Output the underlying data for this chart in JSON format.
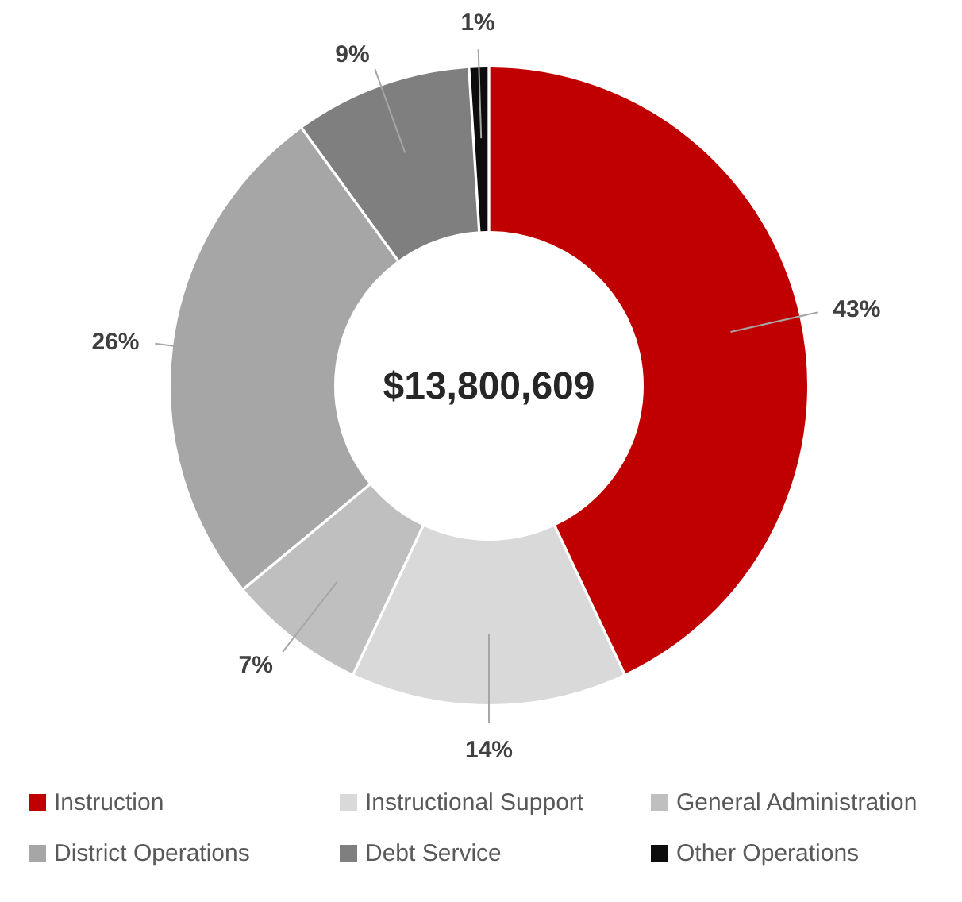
{
  "chart_data": {
    "type": "donut",
    "categories": [
      "Instruction",
      "Instructional Support",
      "General Administration",
      "District Operations",
      "Debt Service",
      "Other Operations"
    ],
    "values": [
      43,
      14,
      7,
      26,
      9,
      1
    ],
    "colors": [
      "#c00000",
      "#d9d9d9",
      "#bfbfbf",
      "#a6a6a6",
      "#7f7f7f",
      "#0d0d0d"
    ],
    "value_labels": [
      "43%",
      "14%",
      "7%",
      "26%",
      "9%",
      "1%"
    ],
    "legend": "bottom",
    "annotations": [
      "$13,800,609"
    ]
  }
}
